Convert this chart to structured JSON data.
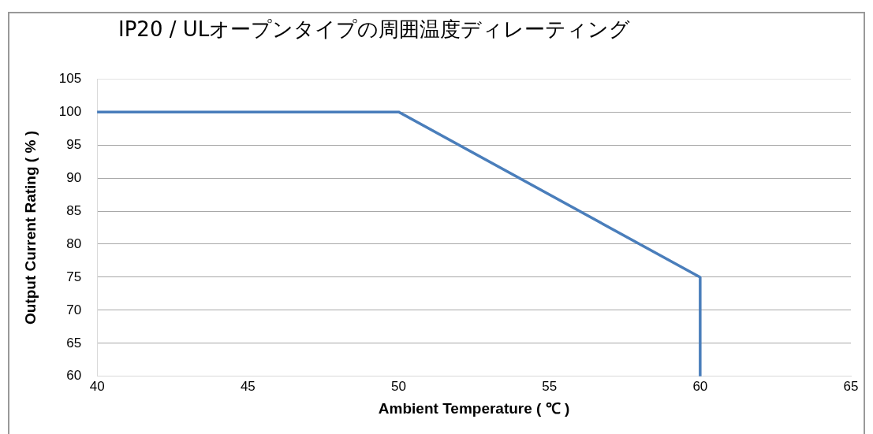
{
  "chart_data": {
    "type": "line",
    "title": "IP20 / ULオープンタイプの周囲温度ディレーティング",
    "xlabel": "Ambient Temperature ( ℃ )",
    "ylabel": "Output Current Rating ( % )",
    "series": [
      {
        "color": "#4a7ebb",
        "x": [
          40,
          50,
          60,
          60
        ],
        "values": [
          100,
          100,
          75,
          60
        ]
      }
    ],
    "xlim": [
      40,
      65
    ],
    "xticks": [
      40,
      45,
      50,
      55,
      60,
      65
    ],
    "ylim": [
      60,
      105
    ],
    "yticks": [
      60,
      65,
      70,
      75,
      80,
      85,
      90,
      95,
      100,
      105
    ],
    "grid": "y",
    "legend": false,
    "marker": "none",
    "line_style": "solid"
  }
}
